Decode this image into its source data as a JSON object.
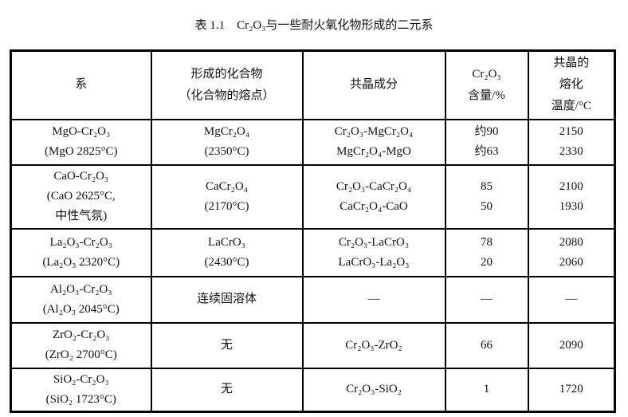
{
  "title": "表 1.1　Cr₂O₃与一些耐火氧化物形成的二元系",
  "headers": [
    [
      "系"
    ],
    [
      "形成的化合物",
      "（化合物的熔点）"
    ],
    [
      "共晶成分"
    ],
    [
      "Cr₂O₃",
      "含量/%"
    ],
    [
      "共晶的",
      "熔化",
      "温度/°C"
    ]
  ],
  "rows": [
    {
      "system": [
        "MgO-Cr₂O₃",
        "(MgO 2825°C)"
      ],
      "compound": [
        "MgCr₂O₄",
        "(2350°C)"
      ],
      "eutectic": [
        "Cr₂O₃-MgCr₂O₄",
        "MgCr₂O₄-MgO"
      ],
      "content": [
        "约90",
        "约63"
      ],
      "temp": [
        "2150",
        "2330"
      ]
    },
    {
      "system": [
        "CaO-Cr₂O₃",
        "(CaO 2625°C,",
        "中性气氛)"
      ],
      "compound": [
        "CaCr₂O₄",
        "(2170°C)"
      ],
      "eutectic": [
        "Cr₂O₃-CaCr₂O₄",
        "CaCr₂O₄-CaO"
      ],
      "content": [
        "85",
        "50"
      ],
      "temp": [
        "2100",
        "1930"
      ]
    },
    {
      "system": [
        "La₂O₃-Cr₂O₃",
        "(La₂O₃ 2320°C)"
      ],
      "compound": [
        "LaCrO₃",
        "(2430°C)"
      ],
      "eutectic": [
        "Cr₂O₃-LaCrO₃",
        "LaCrO₃-La₂O₃"
      ],
      "content": [
        "78",
        "20"
      ],
      "temp": [
        "2080",
        "2060"
      ]
    },
    {
      "system": [
        "Al₂O₃-Cr₂O₃",
        "(Al₂O₃ 2045°C)"
      ],
      "compound": [
        "连续固溶体"
      ],
      "eutectic": [
        "—"
      ],
      "content": [
        "—"
      ],
      "temp": [
        "—"
      ]
    },
    {
      "system": [
        "ZrO₂-Cr₂O₃",
        "(ZrO₂ 2700°C)"
      ],
      "compound": [
        "无"
      ],
      "eutectic": [
        "Cr₂O₃-ZrO₂"
      ],
      "content": [
        "66"
      ],
      "temp": [
        "2090"
      ]
    },
    {
      "system": [
        "SiO₂-Cr₂O₃",
        "(SiO₂ 1723°C)"
      ],
      "compound": [
        "无"
      ],
      "eutectic": [
        "Cr₂O₃-SiO₂"
      ],
      "content": [
        "1"
      ],
      "temp": [
        "1720"
      ]
    }
  ]
}
